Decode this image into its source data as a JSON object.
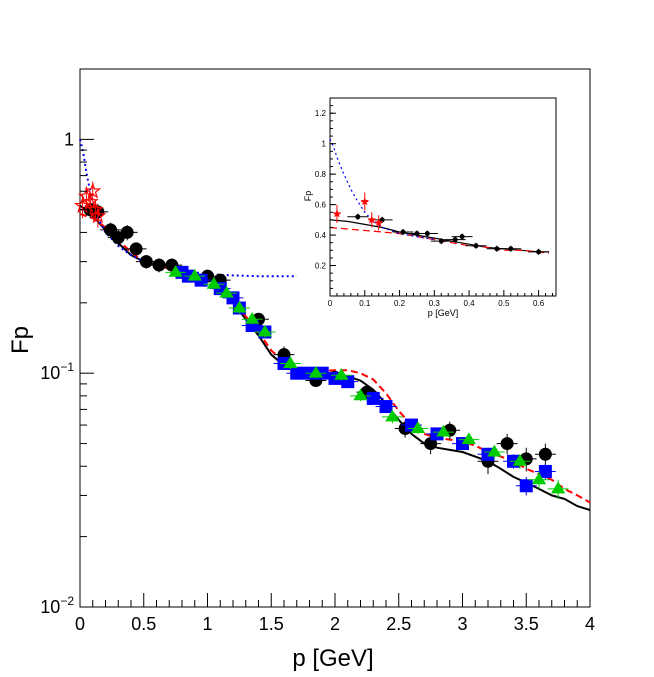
{
  "chart_data": [
    {
      "type": "scatter",
      "xlabel": "p [GeV]",
      "ylabel": "Fp",
      "xlim": [
        0,
        4
      ],
      "ylim": [
        0.01,
        2.0
      ],
      "yscale": "log",
      "x_ticks": [
        0,
        0.5,
        1,
        1.5,
        2,
        2.5,
        3,
        3.5,
        4
      ],
      "x_tick_labels": [
        "0",
        "0.5",
        "1",
        "1.5",
        "2",
        "2.5",
        "3",
        "3.5",
        "4"
      ],
      "y_tick_labels": [
        {
          "value": 1,
          "base": "1",
          "exp": ""
        },
        {
          "value": 0.1,
          "base": "10",
          "exp": "−1"
        },
        {
          "value": 0.01,
          "base": "10",
          "exp": "−2"
        }
      ],
      "grid": false,
      "lines": [
        {
          "style": "solid",
          "color": "#000000",
          "x": [
            0,
            0.05,
            0.1,
            0.2,
            0.3,
            0.4,
            0.5,
            0.6,
            0.7,
            0.8,
            0.9,
            1.0,
            1.1,
            1.2,
            1.3,
            1.4,
            1.5,
            1.6,
            1.7,
            1.8,
            1.9,
            2.0,
            2.1,
            2.2,
            2.3,
            2.4,
            2.5,
            2.6,
            2.7,
            2.8,
            2.9,
            3.0,
            3.1,
            3.2,
            3.3,
            3.4,
            3.5,
            3.6,
            3.7,
            3.8,
            3.9,
            4.0
          ],
          "y": [
            0.52,
            0.5,
            0.47,
            0.41,
            0.36,
            0.32,
            0.3,
            0.29,
            0.28,
            0.275,
            0.265,
            0.255,
            0.235,
            0.2,
            0.17,
            0.145,
            0.12,
            0.108,
            0.1,
            0.098,
            0.098,
            0.098,
            0.097,
            0.093,
            0.085,
            0.074,
            0.063,
            0.055,
            0.05,
            0.048,
            0.047,
            0.046,
            0.044,
            0.042,
            0.039,
            0.036,
            0.034,
            0.032,
            0.03,
            0.029,
            0.027,
            0.026
          ]
        },
        {
          "style": "dashed",
          "color": "#ff0000",
          "x": [
            0,
            0.1,
            0.2,
            0.3,
            0.4,
            0.5,
            0.6,
            0.7,
            0.8,
            0.9,
            1.0,
            1.1,
            1.2,
            1.3,
            1.4,
            1.5,
            1.6,
            1.7,
            1.8,
            1.9,
            2.0,
            2.1,
            2.2,
            2.3,
            2.4,
            2.5,
            2.6,
            2.7,
            2.8,
            2.9,
            3.0,
            3.1,
            3.2,
            3.3,
            3.4,
            3.5,
            3.6,
            3.7,
            3.8,
            3.9,
            4.0
          ],
          "y": [
            0.48,
            0.46,
            0.42,
            0.37,
            0.33,
            0.3,
            0.29,
            0.28,
            0.275,
            0.265,
            0.255,
            0.235,
            0.205,
            0.175,
            0.15,
            0.125,
            0.112,
            0.104,
            0.102,
            0.102,
            0.103,
            0.103,
            0.1,
            0.094,
            0.082,
            0.069,
            0.06,
            0.055,
            0.053,
            0.052,
            0.051,
            0.049,
            0.046,
            0.044,
            0.042,
            0.039,
            0.037,
            0.035,
            0.032,
            0.03,
            0.028
          ]
        },
        {
          "style": "dashdot",
          "color": "#0000ff",
          "x": [
            0,
            0.01,
            0.03,
            0.05,
            0.08,
            0.1,
            0.15,
            0.2,
            0.3,
            0.4,
            0.5,
            0.6,
            0.7,
            0.8,
            0.9,
            1.0,
            1.2,
            1.4,
            1.7
          ],
          "y": [
            1.0,
            0.95,
            0.85,
            0.72,
            0.6,
            0.53,
            0.45,
            0.4,
            0.35,
            0.32,
            0.3,
            0.29,
            0.28,
            0.275,
            0.27,
            0.265,
            0.262,
            0.26,
            0.26
          ]
        }
      ],
      "series": [
        {
          "marker": "circle",
          "color": "#000000",
          "x": [
            0.08,
            0.14,
            0.24,
            0.3,
            0.37,
            0.44,
            0.52,
            0.62,
            0.72,
            1.0,
            1.1,
            1.4,
            1.6,
            1.85,
            2.0,
            2.25,
            2.55,
            2.75,
            2.9,
            3.2,
            3.35,
            3.5,
            3.65
          ],
          "y": [
            0.5,
            0.49,
            0.41,
            0.38,
            0.4,
            0.34,
            0.3,
            0.29,
            0.29,
            0.26,
            0.25,
            0.17,
            0.12,
            0.093,
            0.096,
            0.083,
            0.058,
            0.05,
            0.057,
            0.042,
            0.05,
            0.043,
            0.045
          ],
          "err": [
            0.04,
            0.04,
            0.03,
            0.03,
            0.03,
            0.02,
            0.02,
            0.02,
            0.02,
            0.01,
            0.01,
            0.01,
            0.01,
            0.005,
            0.005,
            0.005,
            0.005,
            0.005,
            0.005,
            0.005,
            0.005,
            0.005,
            0.005
          ]
        },
        {
          "marker": "square",
          "color": "#0000ff",
          "x": [
            0.8,
            0.85,
            0.95,
            1.1,
            1.2,
            1.25,
            1.35,
            1.45,
            1.6,
            1.7,
            1.8,
            1.9,
            2.0,
            2.1,
            2.3,
            2.4,
            2.6,
            2.8,
            3.0,
            3.2,
            3.4,
            3.5,
            3.65
          ],
          "y": [
            0.27,
            0.26,
            0.25,
            0.23,
            0.21,
            0.19,
            0.16,
            0.15,
            0.11,
            0.1,
            0.1,
            0.1,
            0.095,
            0.092,
            0.078,
            0.072,
            0.06,
            0.055,
            0.05,
            0.045,
            0.042,
            0.033,
            0.038
          ],
          "err": [
            0.01,
            0.01,
            0.01,
            0.01,
            0.01,
            0.01,
            0.008,
            0.008,
            0.006,
            0.005,
            0.005,
            0.005,
            0.004,
            0.004,
            0.004,
            0.004,
            0.003,
            0.003,
            0.003,
            0.003,
            0.003,
            0.003,
            0.003
          ]
        },
        {
          "marker": "triangle",
          "color": "#00cc00",
          "x": [
            0.75,
            0.9,
            1.05,
            1.15,
            1.25,
            1.35,
            1.45,
            1.65,
            1.85,
            2.05,
            2.2,
            2.45,
            2.65,
            2.85,
            3.05,
            3.25,
            3.45,
            3.6,
            3.75
          ],
          "y": [
            0.27,
            0.26,
            0.24,
            0.22,
            0.19,
            0.17,
            0.15,
            0.11,
            0.1,
            0.098,
            0.08,
            0.065,
            0.058,
            0.056,
            0.052,
            0.046,
            0.042,
            0.035,
            0.032
          ],
          "err": [
            0.01,
            0.01,
            0.01,
            0.01,
            0.01,
            0.008,
            0.008,
            0.006,
            0.005,
            0.005,
            0.004,
            0.004,
            0.003,
            0.003,
            0.003,
            0.003,
            0.003,
            0.003,
            0.003
          ]
        },
        {
          "marker": "star",
          "color": "#ff0000",
          "x": [
            0.02,
            0.05,
            0.08,
            0.1,
            0.12,
            0.14
          ],
          "y": [
            0.52,
            0.57,
            0.54,
            0.6,
            0.5,
            0.47
          ],
          "err": [
            0.06,
            0.06,
            0.06,
            0.06,
            0.05,
            0.05
          ]
        }
      ]
    },
    {
      "type": "scatter",
      "xlabel": "p [GeV]",
      "ylabel": "Fp",
      "xlim": [
        0,
        0.65
      ],
      "ylim": [
        0,
        1.3
      ],
      "yscale": "linear",
      "x_ticks": [
        0,
        0.1,
        0.2,
        0.3,
        0.4,
        0.5,
        0.6
      ],
      "x_tick_labels": [
        "0",
        "0.1",
        "0.2",
        "0.3",
        "0.4",
        "0.5",
        "0.6"
      ],
      "y_ticks": [
        0.2,
        0.4,
        0.6,
        0.8,
        1.0,
        1.2
      ],
      "y_tick_labels": [
        "0.2",
        "0.4",
        "0.6",
        "0.8",
        "1",
        "1.2"
      ],
      "grid": false,
      "lines": [
        {
          "style": "solid",
          "color": "#000000",
          "x": [
            0,
            0.05,
            0.1,
            0.15,
            0.2,
            0.25,
            0.3,
            0.35,
            0.4,
            0.45,
            0.5,
            0.55,
            0.6,
            0.63
          ],
          "y": [
            0.5,
            0.49,
            0.47,
            0.45,
            0.42,
            0.4,
            0.38,
            0.36,
            0.34,
            0.32,
            0.31,
            0.3,
            0.29,
            0.29
          ]
        },
        {
          "style": "dashed",
          "color": "#ff0000",
          "x": [
            0,
            0.05,
            0.1,
            0.15,
            0.2,
            0.25,
            0.3,
            0.35,
            0.4,
            0.45,
            0.5,
            0.55,
            0.6,
            0.63
          ],
          "y": [
            0.45,
            0.44,
            0.43,
            0.42,
            0.41,
            0.39,
            0.37,
            0.35,
            0.33,
            0.32,
            0.3,
            0.3,
            0.29,
            0.28
          ]
        },
        {
          "style": "dashdot",
          "color": "#0000ff",
          "x": [
            0,
            0.01,
            0.02,
            0.04,
            0.06,
            0.08,
            0.1,
            0.12,
            0.15,
            0.2,
            0.25,
            0.3
          ],
          "y": [
            1.03,
            0.98,
            0.91,
            0.8,
            0.7,
            0.62,
            0.55,
            0.5,
            0.45,
            0.41,
            0.39,
            0.37
          ]
        }
      ],
      "series": [
        {
          "marker": "circle",
          "color": "#000000",
          "x": [
            0.08,
            0.15,
            0.21,
            0.25,
            0.28,
            0.32,
            0.36,
            0.38,
            0.42,
            0.48,
            0.52,
            0.6
          ],
          "y": [
            0.52,
            0.5,
            0.42,
            0.41,
            0.41,
            0.36,
            0.37,
            0.39,
            0.33,
            0.31,
            0.31,
            0.29
          ],
          "xerr": [
            0.03,
            0.03,
            0.03,
            0.03,
            0.03,
            0.03,
            0.03,
            0.03,
            0.03,
            0.03,
            0.03,
            0.03
          ],
          "err": [
            0.02,
            0.02,
            0.02,
            0.02,
            0.02,
            0.02,
            0.02,
            0.02,
            0.02,
            0.02,
            0.02,
            0.02
          ]
        },
        {
          "marker": "star",
          "color": "#ff0000",
          "x": [
            0.02,
            0.1,
            0.12,
            0.14
          ],
          "y": [
            0.54,
            0.62,
            0.5,
            0.48
          ],
          "xerr": [
            0.01,
            0.01,
            0.01,
            0.01
          ],
          "err": [
            0.06,
            0.06,
            0.05,
            0.05
          ]
        }
      ]
    }
  ]
}
